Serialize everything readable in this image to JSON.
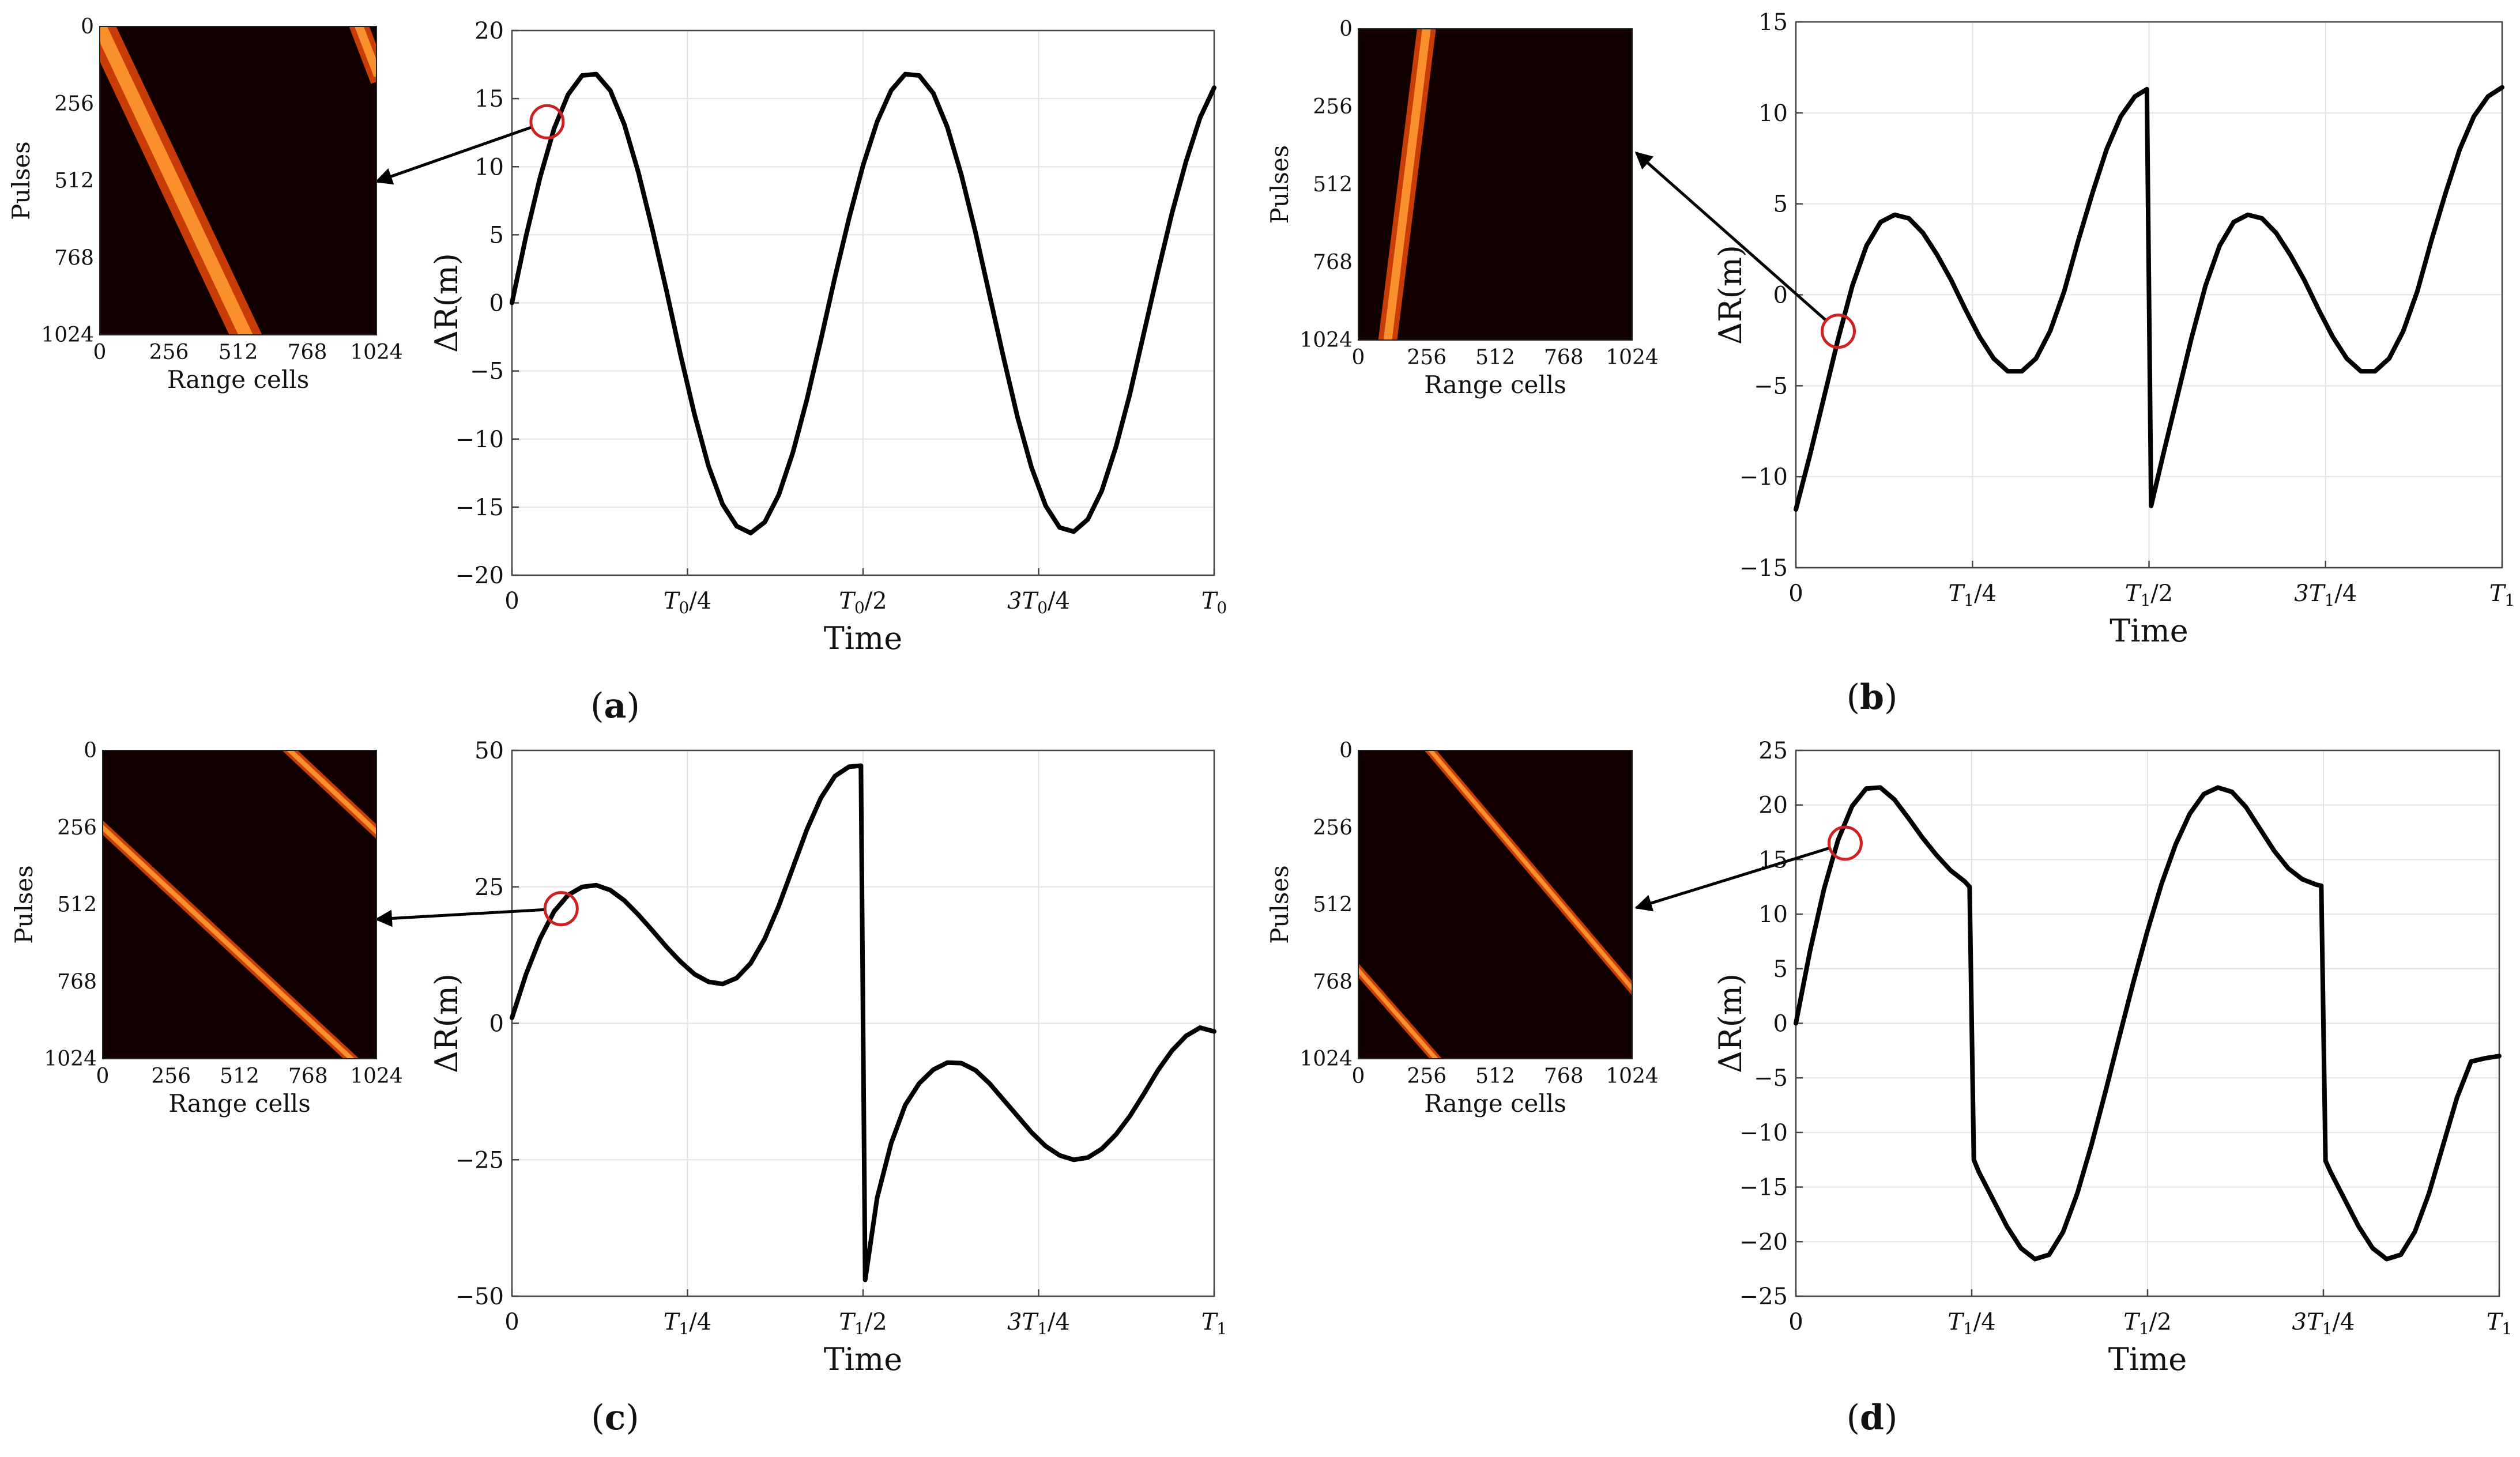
{
  "figure": {
    "accent_colors": {
      "curve": "#000000",
      "marker": "#cc2222",
      "heatmap_bg": "#120000",
      "stripe_outer": "#c83c08",
      "stripe_inner": "#ff9a30"
    }
  },
  "chart_data": [
    {
      "panel": "a",
      "type": "line",
      "label_prefix": "(",
      "label_letter": "a",
      "label_suffix": ")",
      "xlabel": "Time",
      "ylabel": "ΔR(m)",
      "xlim": [
        0,
        1
      ],
      "ylim": [
        -20,
        20
      ],
      "yticks": [
        -20,
        -15,
        -10,
        -5,
        0,
        5,
        10,
        15,
        20
      ],
      "ytick_labels": [
        "−20",
        "−15",
        "−10",
        "−5",
        "0",
        "5",
        "10",
        "15",
        "20"
      ],
      "xtick_labels": [
        {
          "pre": "0",
          "sub": "",
          "post": ""
        },
        {
          "pre": "T",
          "sub": "0",
          "post": "/4"
        },
        {
          "pre": "T",
          "sub": "0",
          "post": "/2"
        },
        {
          "pre": "3T",
          "sub": "0",
          "post": "/4"
        },
        {
          "pre": "T",
          "sub": "0",
          "post": ""
        }
      ],
      "series": [
        {
          "name": "ΔR",
          "x": [
            0,
            0.02,
            0.04,
            0.06,
            0.08,
            0.1,
            0.12,
            0.14,
            0.16,
            0.18,
            0.2,
            0.22,
            0.24,
            0.26,
            0.28,
            0.3,
            0.32,
            0.34,
            0.36,
            0.38,
            0.4,
            0.42,
            0.44,
            0.46,
            0.48,
            0.5,
            0.52,
            0.54,
            0.56,
            0.58,
            0.6,
            0.62,
            0.64,
            0.66,
            0.68,
            0.7,
            0.72,
            0.74,
            0.76,
            0.78,
            0.8,
            0.82,
            0.84,
            0.86,
            0.88,
            0.9,
            0.92,
            0.94,
            0.96,
            0.98,
            1
          ],
          "y": [
            0,
            4.9,
            9.2,
            12.8,
            15.3,
            16.7,
            16.8,
            15.6,
            13.1,
            9.6,
            5.4,
            0.9,
            -3.8,
            -8.2,
            -12.0,
            -14.8,
            -16.4,
            -16.9,
            -16.1,
            -14.1,
            -11.0,
            -7.1,
            -2.7,
            1.9,
            6.2,
            10.1,
            13.3,
            15.6,
            16.8,
            16.7,
            15.4,
            12.9,
            9.4,
            5.2,
            0.6,
            -4.0,
            -8.4,
            -12.1,
            -14.9,
            -16.5,
            -16.8,
            -15.9,
            -13.8,
            -10.6,
            -6.7,
            -2.2,
            2.3,
            6.6,
            10.4,
            13.6,
            15.8
          ]
        }
      ],
      "marker": {
        "x": 0.05,
        "y": 13.3
      },
      "heatmap": {
        "ylabel": "Pulses",
        "xlabel": "Range cells",
        "ticks": [
          0,
          256,
          512,
          768,
          1024
        ],
        "tick_labels": [
          "0",
          "256",
          "512",
          "768",
          "1024"
        ],
        "stripes": [
          {
            "x0": 0,
            "y0": 0,
            "x1": 540,
            "y1": 1024,
            "width": 110
          },
          {
            "x0": 960,
            "y0": 0,
            "x1": 1024,
            "y1": 150,
            "width": 70
          }
        ]
      }
    },
    {
      "panel": "b",
      "type": "line",
      "label_prefix": "(",
      "label_letter": "b",
      "label_suffix": ")",
      "xlabel": "Time",
      "ylabel": "ΔR(m)",
      "xlim": [
        0,
        1
      ],
      "ylim": [
        -15,
        15
      ],
      "yticks": [
        -15,
        -10,
        -5,
        0,
        5,
        10,
        15
      ],
      "ytick_labels": [
        "−15",
        "−10",
        "−5",
        "0",
        "5",
        "10",
        "15"
      ],
      "xtick_labels": [
        {
          "pre": "0",
          "sub": "",
          "post": ""
        },
        {
          "pre": "T",
          "sub": "1",
          "post": "/4"
        },
        {
          "pre": "T",
          "sub": "1",
          "post": "/2"
        },
        {
          "pre": "3T",
          "sub": "1",
          "post": "/4"
        },
        {
          "pre": "T",
          "sub": "1",
          "post": ""
        }
      ],
      "series": [
        {
          "name": "ΔR",
          "x": [
            0,
            0.02,
            0.04,
            0.06,
            0.08,
            0.1,
            0.12,
            0.14,
            0.16,
            0.18,
            0.2,
            0.22,
            0.24,
            0.26,
            0.28,
            0.3,
            0.32,
            0.34,
            0.36,
            0.38,
            0.4,
            0.42,
            0.44,
            0.46,
            0.48,
            0.497,
            0.5,
            0.503,
            0.52,
            0.54,
            0.56,
            0.58,
            0.6,
            0.62,
            0.64,
            0.66,
            0.68,
            0.7,
            0.72,
            0.74,
            0.76,
            0.78,
            0.8,
            0.82,
            0.84,
            0.86,
            0.88,
            0.9,
            0.92,
            0.94,
            0.96,
            0.98,
            1
          ],
          "y": [
            -11.8,
            -8.8,
            -5.6,
            -2.4,
            0.5,
            2.7,
            4.0,
            4.4,
            4.2,
            3.4,
            2.2,
            0.8,
            -0.8,
            -2.3,
            -3.5,
            -4.2,
            -4.2,
            -3.5,
            -2.0,
            0.2,
            3.0,
            5.6,
            8.0,
            9.8,
            10.9,
            11.3,
            0,
            -11.6,
            -8.8,
            -5.6,
            -2.4,
            0.5,
            2.7,
            4.0,
            4.4,
            4.2,
            3.4,
            2.2,
            0.8,
            -0.8,
            -2.3,
            -3.5,
            -4.2,
            -4.2,
            -3.5,
            -2.0,
            0.2,
            3.0,
            5.6,
            8.0,
            9.8,
            10.9,
            11.4
          ]
        }
      ],
      "marker": {
        "x": 0.06,
        "y": -2.0
      },
      "heatmap": {
        "ylabel": "Pulses",
        "xlabel": "Range cells",
        "ticks": [
          0,
          256,
          512,
          768,
          1024
        ],
        "tick_labels": [
          "0",
          "256",
          "512",
          "768",
          "1024"
        ],
        "stripes": [
          {
            "x0": 255,
            "y0": 0,
            "x1": 110,
            "y1": 1024,
            "width": 70
          }
        ]
      }
    },
    {
      "panel": "c",
      "type": "line",
      "label_prefix": "(",
      "label_letter": "c",
      "label_suffix": ")",
      "xlabel": "Time",
      "ylabel": "ΔR(m)",
      "xlim": [
        0,
        1
      ],
      "ylim": [
        -50,
        50
      ],
      "yticks": [
        -50,
        -25,
        0,
        25,
        50
      ],
      "ytick_labels": [
        "−50",
        "−25",
        "0",
        "25",
        "50"
      ],
      "xtick_labels": [
        {
          "pre": "0",
          "sub": "",
          "post": ""
        },
        {
          "pre": "T",
          "sub": "1",
          "post": "/4"
        },
        {
          "pre": "T",
          "sub": "1",
          "post": "/2"
        },
        {
          "pre": "3T",
          "sub": "1",
          "post": "/4"
        },
        {
          "pre": "T",
          "sub": "1",
          "post": ""
        }
      ],
      "series": [
        {
          "name": "ΔR",
          "x": [
            0,
            0.02,
            0.04,
            0.06,
            0.08,
            0.1,
            0.12,
            0.14,
            0.16,
            0.18,
            0.2,
            0.22,
            0.24,
            0.26,
            0.28,
            0.3,
            0.32,
            0.34,
            0.36,
            0.38,
            0.4,
            0.42,
            0.44,
            0.46,
            0.48,
            0.497,
            0.5,
            0.503,
            0.52,
            0.54,
            0.56,
            0.58,
            0.6,
            0.62,
            0.64,
            0.66,
            0.68,
            0.7,
            0.72,
            0.74,
            0.76,
            0.78,
            0.8,
            0.82,
            0.84,
            0.86,
            0.88,
            0.9,
            0.92,
            0.94,
            0.96,
            0.98,
            1
          ],
          "y": [
            1,
            9,
            15.5,
            20.5,
            23.5,
            25,
            25.3,
            24.4,
            22.5,
            19.9,
            17,
            14,
            11.3,
            9,
            7.6,
            7.2,
            8.3,
            11,
            15.5,
            21.5,
            28.5,
            35.5,
            41.3,
            45.3,
            47,
            47.2,
            0,
            -47,
            -32,
            -22,
            -15,
            -11,
            -8.5,
            -7.2,
            -7.3,
            -8.6,
            -11,
            -14,
            -17,
            -20,
            -22.5,
            -24.2,
            -25,
            -24.6,
            -23,
            -20.4,
            -17,
            -12.9,
            -8.6,
            -5,
            -2.3,
            -0.8,
            -1.5
          ]
        }
      ],
      "marker": {
        "x": 0.07,
        "y": 21
      },
      "heatmap": {
        "ylabel": "Pulses",
        "xlabel": "Range cells",
        "ticks": [
          0,
          256,
          512,
          768,
          1024
        ],
        "tick_labels": [
          "0",
          "256",
          "512",
          "768",
          "1024"
        ],
        "stripes": [
          {
            "x0": 0,
            "y0": 256,
            "x1": 930,
            "y1": 1024,
            "width": 40
          },
          {
            "x0": 700,
            "y0": 0,
            "x1": 1024,
            "y1": 270,
            "width": 40
          }
        ]
      }
    },
    {
      "panel": "d",
      "type": "line",
      "label_prefix": "(",
      "label_letter": "d",
      "label_suffix": ")",
      "xlabel": "Time",
      "ylabel": "ΔR(m)",
      "xlim": [
        0,
        1
      ],
      "ylim": [
        -25,
        25
      ],
      "yticks": [
        -25,
        -20,
        -15,
        -10,
        -5,
        0,
        5,
        10,
        15,
        20,
        25
      ],
      "ytick_labels": [
        "−25",
        "−20",
        "−15",
        "−10",
        "−5",
        "0",
        "5",
        "10",
        "15",
        "20",
        "25"
      ],
      "xtick_labels": [
        {
          "pre": "0",
          "sub": "",
          "post": ""
        },
        {
          "pre": "T",
          "sub": "1",
          "post": "/4"
        },
        {
          "pre": "T",
          "sub": "1",
          "post": "/2"
        },
        {
          "pre": "3T",
          "sub": "1",
          "post": "/4"
        },
        {
          "pre": "T",
          "sub": "1",
          "post": ""
        }
      ],
      "series": [
        {
          "name": "ΔR",
          "x": [
            0,
            0.02,
            0.04,
            0.06,
            0.08,
            0.1,
            0.12,
            0.14,
            0.16,
            0.18,
            0.2,
            0.22,
            0.24,
            0.247,
            0.25,
            0.253,
            0.26,
            0.28,
            0.3,
            0.32,
            0.34,
            0.36,
            0.38,
            0.4,
            0.42,
            0.44,
            0.46,
            0.48,
            0.5,
            0.52,
            0.54,
            0.56,
            0.58,
            0.6,
            0.62,
            0.64,
            0.66,
            0.68,
            0.7,
            0.72,
            0.74,
            0.747,
            0.75,
            0.753,
            0.76,
            0.78,
            0.8,
            0.82,
            0.84,
            0.86,
            0.88,
            0.9,
            0.92,
            0.94,
            0.96,
            0.98,
            1
          ],
          "y": [
            0,
            6.6,
            12.3,
            16.8,
            19.9,
            21.5,
            21.6,
            20.5,
            18.8,
            17,
            15.4,
            14,
            13,
            12.5,
            0,
            -12.5,
            -13.6,
            -16.1,
            -18.6,
            -20.6,
            -21.6,
            -21.2,
            -19.1,
            -15.6,
            -11.2,
            -6.3,
            -1.2,
            3.8,
            8.5,
            12.8,
            16.4,
            19.2,
            21,
            21.6,
            21.2,
            19.8,
            17.8,
            15.8,
            14.2,
            13.2,
            12.7,
            12.6,
            0,
            -12.6,
            -13.6,
            -16.1,
            -18.6,
            -20.6,
            -21.6,
            -21.2,
            -19.1,
            -15.6,
            -11.2,
            -6.8,
            -3.5,
            -3.2,
            -3
          ]
        }
      ],
      "marker": {
        "x": 0.07,
        "y": 16.5
      },
      "heatmap": {
        "ylabel": "Pulses",
        "xlabel": "Range cells",
        "ticks": [
          0,
          256,
          512,
          768,
          1024
        ],
        "tick_labels": [
          "0",
          "256",
          "512",
          "768",
          "1024"
        ],
        "stripes": [
          {
            "x0": 270,
            "y0": 0,
            "x1": 1024,
            "y1": 790,
            "width": 35
          },
          {
            "x0": 0,
            "y0": 730,
            "x1": 290,
            "y1": 1024,
            "width": 35
          }
        ]
      }
    }
  ]
}
